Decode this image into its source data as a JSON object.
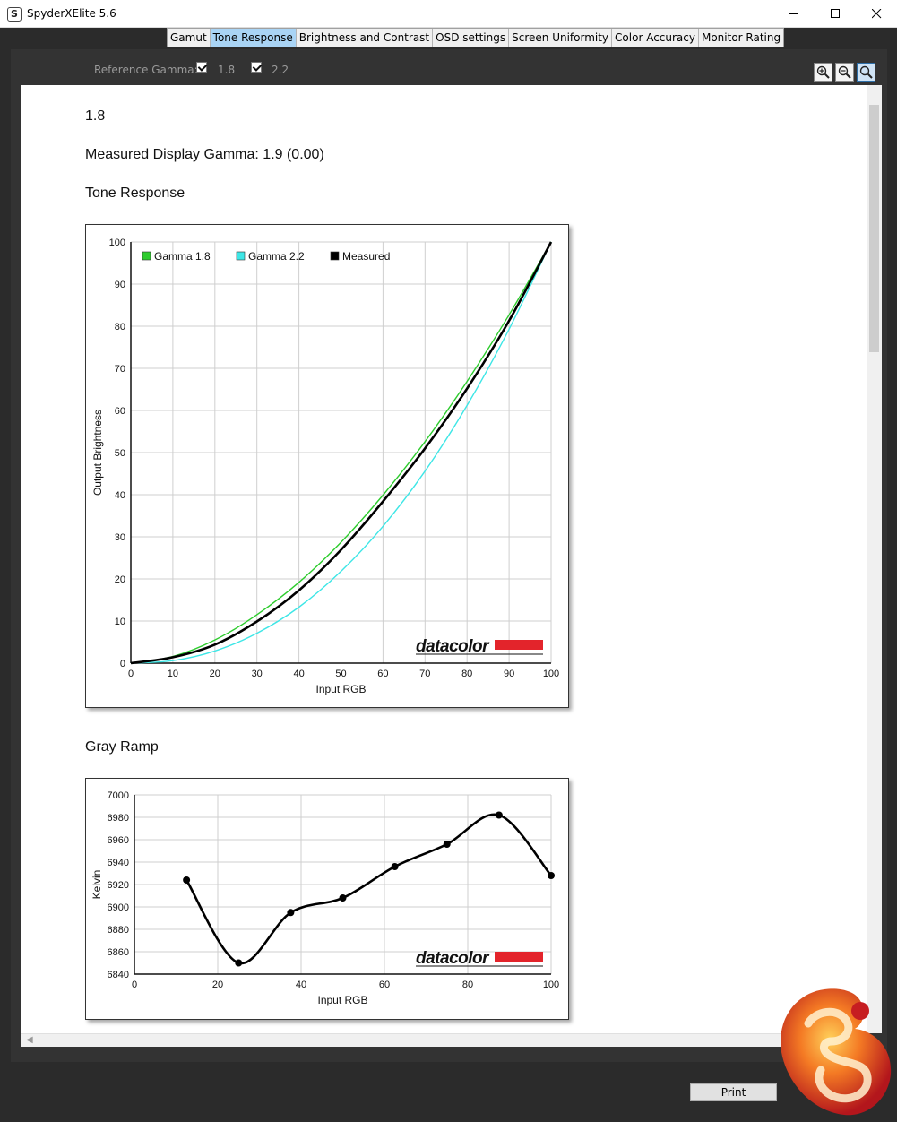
{
  "window": {
    "title": "SpyderXElite 5.6",
    "icon": "S"
  },
  "tabs": [
    {
      "label": "Gamut",
      "active": false
    },
    {
      "label": "Tone Response",
      "active": true
    },
    {
      "label": "Brightness and Contrast",
      "active": false
    },
    {
      "label": "OSD settings",
      "active": false
    },
    {
      "label": "Screen Uniformity",
      "active": false
    },
    {
      "label": "Color Accuracy",
      "active": false
    },
    {
      "label": "Monitor Rating",
      "active": false
    }
  ],
  "reference": {
    "label": "Reference Gamma:",
    "options": [
      {
        "label": "1.8",
        "checked": true
      },
      {
        "label": "2.2",
        "checked": true
      }
    ]
  },
  "report": {
    "gamma_heading": "1.8",
    "measured_line": "Measured Display Gamma: 1.9 (0.00)",
    "tone_title": "Tone Response",
    "gray_title": "Gray Ramp"
  },
  "brand": {
    "watermark": "datacolor",
    "accent": "#e3242b"
  },
  "print_label": "Print",
  "chart_data": [
    {
      "type": "line",
      "xlabel": "Input RGB",
      "ylabel": "Output Brightness",
      "xlim": [
        0,
        100
      ],
      "ylim": [
        0,
        100
      ],
      "xticks": [
        0,
        10,
        20,
        30,
        40,
        50,
        60,
        70,
        80,
        90,
        100
      ],
      "yticks": [
        0,
        10,
        20,
        30,
        40,
        50,
        60,
        70,
        80,
        90,
        100
      ],
      "grid": true,
      "legend": "top-left",
      "x": [
        0,
        10,
        20,
        30,
        40,
        50,
        60,
        70,
        80,
        90,
        100
      ],
      "series": [
        {
          "name": "Gamma 1.8",
          "color": "#2ecc2e",
          "values": [
            0,
            1.6,
            5.5,
            11.5,
            19.2,
            28.7,
            39.9,
            52.6,
            66.9,
            82.7,
            100
          ]
        },
        {
          "name": "Gamma 2.2",
          "color": "#3ee6e6",
          "values": [
            0,
            0.6,
            2.9,
            7.1,
            13.3,
            21.8,
            32.5,
            45.6,
            61.2,
            79.3,
            100
          ]
        },
        {
          "name": "Measured",
          "color": "#000000",
          "values": [
            0,
            1.4,
            4.4,
            9.9,
            17.3,
            26.9,
            38.4,
            51.0,
            65.2,
            81.3,
            100
          ]
        }
      ]
    },
    {
      "type": "line",
      "xlabel": "Input RGB",
      "ylabel": "Kelvin",
      "xlim": [
        0,
        100
      ],
      "ylim": [
        6840,
        7000
      ],
      "xticks": [
        0,
        20,
        40,
        60,
        80,
        100
      ],
      "yticks": [
        6840,
        6860,
        6880,
        6900,
        6920,
        6940,
        6960,
        6980,
        7000
      ],
      "grid": true,
      "series": [
        {
          "color": "#000000",
          "x": [
            12.5,
            25,
            37.5,
            50,
            62.5,
            75,
            87.5,
            100
          ],
          "values": [
            6924,
            6850,
            6895,
            6908,
            6936,
            6956,
            6982,
            6928
          ]
        }
      ]
    }
  ]
}
